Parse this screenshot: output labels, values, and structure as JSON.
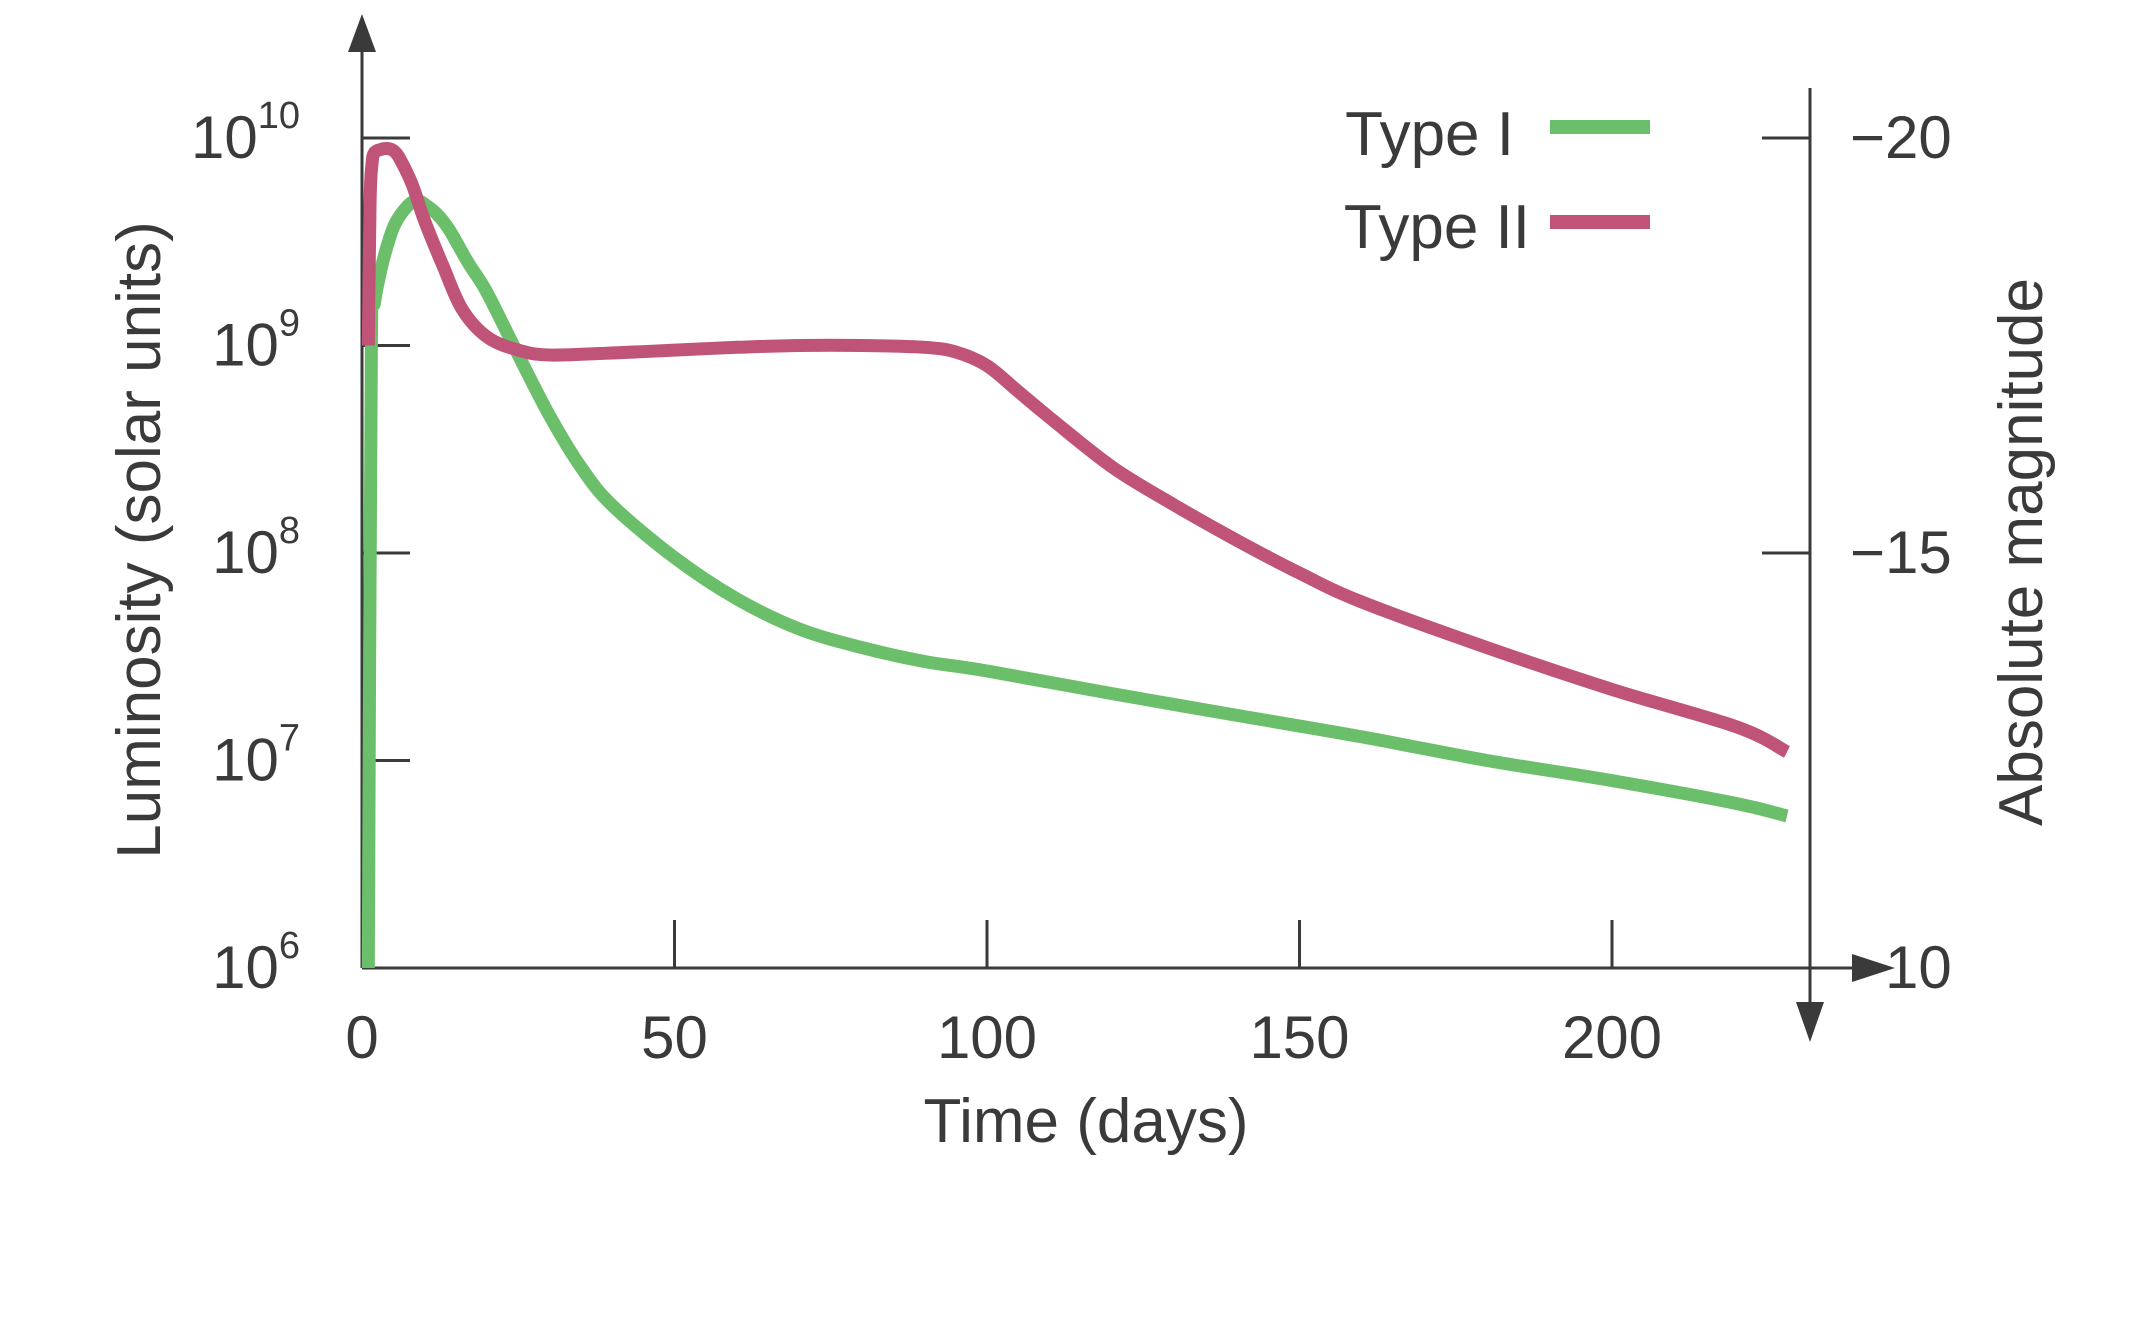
{
  "chart_data": {
    "type": "line",
    "xlabel": "Time (days)",
    "ylabel": "Luminosity (solar units)",
    "y2label": "Absolute magnitude",
    "xlim": [
      0,
      240
    ],
    "x_ticks": [
      0,
      50,
      100,
      150,
      200
    ],
    "y_scale": "log",
    "ylim": [
      1000000,
      10000000000
    ],
    "y_ticks": [
      {
        "value": 1000000,
        "base": "10",
        "exp": "6"
      },
      {
        "value": 10000000,
        "base": "10",
        "exp": "7"
      },
      {
        "value": 100000000,
        "base": "10",
        "exp": "8"
      },
      {
        "value": 1000000000,
        "base": "10",
        "exp": "9"
      },
      {
        "value": 10000000000,
        "base": "10",
        "exp": "10"
      }
    ],
    "y2_ticks": [
      {
        "label": "−20",
        "luminosity": 10000000000
      },
      {
        "label": "−15",
        "luminosity": 100000000
      },
      {
        "label": "−10",
        "luminosity": 1000000
      }
    ],
    "legend_position": "top-right",
    "series": [
      {
        "name": "Type I",
        "color": "#6cbf6a",
        "x": [
          1,
          1.5,
          2,
          3,
          4,
          5,
          6,
          7,
          8,
          9,
          10,
          12,
          14,
          17,
          20,
          25,
          30,
          35,
          40,
          50,
          60,
          70,
          80,
          90,
          100,
          120,
          140,
          160,
          180,
          200,
          220,
          228
        ],
        "y": [
          1000000,
          1000000000,
          1600000000,
          2300000000,
          3000000000,
          3700000000,
          4200000000,
          4600000000,
          4900000000,
          5000000000,
          4800000000,
          4300000000,
          3600000000,
          2500000000,
          1800000000,
          900000000,
          460000000,
          260000000,
          170000000,
          95000000,
          60000000,
          43000000,
          35000000,
          30000000,
          27000000,
          21000000,
          16500000,
          13000000,
          10000000,
          8000000,
          6200000,
          5400000
        ]
      },
      {
        "name": "Type II",
        "color": "#c05478",
        "x": [
          1,
          1.3,
          1.6,
          2,
          3,
          4,
          5,
          6,
          8,
          10,
          13,
          16,
          20,
          25,
          30,
          40,
          50,
          60,
          70,
          80,
          90,
          95,
          100,
          105,
          110,
          120,
          130,
          140,
          150,
          160,
          180,
          200,
          220,
          228
        ],
        "y": [
          1000000000,
          5000000000,
          7500000000,
          8500000000,
          8800000000,
          8900000000,
          8700000000,
          8000000000,
          6000000000,
          4000000000,
          2400000000,
          1500000000,
          1100000000,
          950000000,
          900000000,
          920000000,
          950000000,
          980000000,
          1000000000,
          1000000000,
          980000000,
          930000000,
          800000000,
          600000000,
          450000000,
          260000000,
          170000000,
          115000000,
          80000000,
          58000000,
          35000000,
          22000000,
          14500000,
          11000000
        ]
      }
    ]
  }
}
